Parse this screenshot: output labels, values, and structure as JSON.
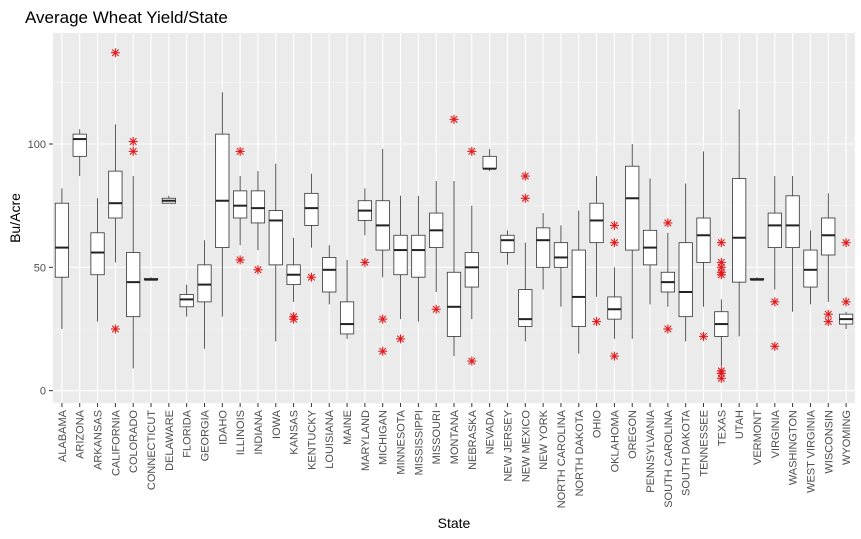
{
  "chart_data": {
    "type": "boxplot",
    "title": "Average Wheat Yield/State",
    "xlabel": "State",
    "ylabel": "Bu/Acre",
    "ylim": [
      -5,
      145
    ],
    "yticks": [
      0,
      50,
      100
    ],
    "grid": true,
    "panel_color": "#ebebeb",
    "outlier_color": "#e31a1c",
    "box_fill": "#ffffff",
    "box_stroke": "#333333",
    "categories": [
      "ALABAMA",
      "ARIZONA",
      "ARKANSAS",
      "CALIFORNIA",
      "COLORADO",
      "CONNECTICUT",
      "DELAWARE",
      "FLORIDA",
      "GEORGIA",
      "IDAHO",
      "ILLINOIS",
      "INDIANA",
      "IOWA",
      "KANSAS",
      "KENTUCKY",
      "LOUISIANA",
      "MAINE",
      "MARYLAND",
      "MICHIGAN",
      "MINNESOTA",
      "MISSISSIPPI",
      "MISSOURI",
      "MONTANA",
      "NEBRASKA",
      "NEVADA",
      "NEW JERSEY",
      "NEW MEXICO",
      "NEW YORK",
      "NORTH CAROLINA",
      "NORTH DAKOTA",
      "OHIO",
      "OKLAHOMA",
      "OREGON",
      "PENNSYLVANIA",
      "SOUTH CAROLINA",
      "SOUTH DAKOTA",
      "TENNESSEE",
      "TEXAS",
      "UTAH",
      "VERMONT",
      "VIRGINIA",
      "WASHINGTON",
      "WEST VIRGINIA",
      "WISCONSIN",
      "WYOMING"
    ],
    "boxes": [
      {
        "min": 25,
        "q1": 46,
        "median": 58,
        "q3": 76,
        "max": 82,
        "outliers": []
      },
      {
        "min": 87,
        "q1": 95,
        "median": 102,
        "q3": 104,
        "max": 106,
        "outliers": []
      },
      {
        "min": 28,
        "q1": 47,
        "median": 56,
        "q3": 64,
        "max": 78,
        "outliers": []
      },
      {
        "min": 52,
        "q1": 70,
        "median": 76,
        "q3": 89,
        "max": 108,
        "outliers": [
          137,
          25
        ]
      },
      {
        "min": 9,
        "q1": 30,
        "median": 44,
        "q3": 56,
        "max": 87,
        "outliers": [
          101,
          97
        ]
      },
      {
        "min": 45,
        "q1": 45,
        "median": 45,
        "q3": 45.5,
        "max": 46,
        "outliers": []
      },
      {
        "min": 76,
        "q1": 76,
        "median": 77,
        "q3": 78,
        "max": 79,
        "outliers": []
      },
      {
        "min": 30,
        "q1": 34,
        "median": 37,
        "q3": 39,
        "max": 43,
        "outliers": []
      },
      {
        "min": 17,
        "q1": 36,
        "median": 43,
        "q3": 51,
        "max": 61,
        "outliers": []
      },
      {
        "min": 30,
        "q1": 58,
        "median": 77,
        "q3": 104,
        "max": 121,
        "outliers": []
      },
      {
        "min": 59,
        "q1": 70,
        "median": 75,
        "q3": 81,
        "max": 87,
        "outliers": [
          97,
          53
        ]
      },
      {
        "min": 57,
        "q1": 68,
        "median": 74,
        "q3": 81,
        "max": 89,
        "outliers": [
          49
        ]
      },
      {
        "min": 20,
        "q1": 51,
        "median": 69,
        "q3": 73,
        "max": 92,
        "outliers": []
      },
      {
        "min": 36,
        "q1": 43,
        "median": 47,
        "q3": 51,
        "max": 62,
        "outliers": [
          30,
          29
        ]
      },
      {
        "min": 58,
        "q1": 67,
        "median": 74,
        "q3": 80,
        "max": 88,
        "outliers": [
          46
        ]
      },
      {
        "min": 35,
        "q1": 40,
        "median": 49,
        "q3": 54,
        "max": 59,
        "outliers": []
      },
      {
        "min": 21,
        "q1": 23,
        "median": 27,
        "q3": 36,
        "max": 53,
        "outliers": []
      },
      {
        "min": 63,
        "q1": 69,
        "median": 73,
        "q3": 77,
        "max": 82,
        "outliers": [
          52
        ]
      },
      {
        "min": 46,
        "q1": 57,
        "median": 67,
        "q3": 77,
        "max": 98,
        "outliers": [
          29,
          16
        ]
      },
      {
        "min": 29,
        "q1": 47,
        "median": 57,
        "q3": 63,
        "max": 79,
        "outliers": [
          21
        ]
      },
      {
        "min": 28,
        "q1": 46,
        "median": 57,
        "q3": 63,
        "max": 79,
        "outliers": []
      },
      {
        "min": 40,
        "q1": 58,
        "median": 65,
        "q3": 72,
        "max": 85,
        "outliers": [
          33
        ]
      },
      {
        "min": 14,
        "q1": 22,
        "median": 34,
        "q3": 48,
        "max": 85,
        "outliers": [
          110
        ]
      },
      {
        "min": 29,
        "q1": 42,
        "median": 50,
        "q3": 56,
        "max": 75,
        "outliers": [
          97,
          12
        ]
      },
      {
        "min": 89,
        "q1": 90,
        "median": 90,
        "q3": 95,
        "max": 98,
        "outliers": []
      },
      {
        "min": 51,
        "q1": 56,
        "median": 61,
        "q3": 63,
        "max": 65,
        "outliers": []
      },
      {
        "min": 20,
        "q1": 26,
        "median": 29,
        "q3": 41,
        "max": 60,
        "outliers": [
          87,
          78
        ]
      },
      {
        "min": 41,
        "q1": 50,
        "median": 61,
        "q3": 66,
        "max": 72,
        "outliers": []
      },
      {
        "min": 34,
        "q1": 50,
        "median": 54,
        "q3": 60,
        "max": 67,
        "outliers": []
      },
      {
        "min": 15,
        "q1": 26,
        "median": 38,
        "q3": 57,
        "max": 73,
        "outliers": []
      },
      {
        "min": 38,
        "q1": 60,
        "median": 69,
        "q3": 76,
        "max": 87,
        "outliers": [
          28
        ]
      },
      {
        "min": 21,
        "q1": 29,
        "median": 33,
        "q3": 38,
        "max": 50,
        "outliers": [
          67,
          60,
          14
        ]
      },
      {
        "min": 21,
        "q1": 57,
        "median": 78,
        "q3": 91,
        "max": 100,
        "outliers": []
      },
      {
        "min": 35,
        "q1": 51,
        "median": 58,
        "q3": 65,
        "max": 86,
        "outliers": []
      },
      {
        "min": 34,
        "q1": 40,
        "median": 44,
        "q3": 48,
        "max": 64,
        "outliers": [
          68,
          25
        ]
      },
      {
        "min": 20,
        "q1": 30,
        "median": 40,
        "q3": 60,
        "max": 84,
        "outliers": []
      },
      {
        "min": 34,
        "q1": 52,
        "median": 63,
        "q3": 70,
        "max": 97,
        "outliers": [
          22
        ]
      },
      {
        "min": 10,
        "q1": 22,
        "median": 27,
        "q3": 32,
        "max": 37,
        "outliers": [
          60,
          52,
          50,
          48,
          47,
          8,
          7,
          5
        ]
      },
      {
        "min": 22,
        "q1": 44,
        "median": 62,
        "q3": 86,
        "max": 114,
        "outliers": []
      },
      {
        "min": 45,
        "q1": 45,
        "median": 45,
        "q3": 45.5,
        "max": 46,
        "outliers": []
      },
      {
        "min": 41,
        "q1": 58,
        "median": 67,
        "q3": 72,
        "max": 87,
        "outliers": [
          36,
          18
        ]
      },
      {
        "min": 32,
        "q1": 58,
        "median": 67,
        "q3": 79,
        "max": 87,
        "outliers": []
      },
      {
        "min": 35,
        "q1": 42,
        "median": 49,
        "q3": 57,
        "max": 65,
        "outliers": []
      },
      {
        "min": 36,
        "q1": 55,
        "median": 63,
        "q3": 70,
        "max": 80,
        "outliers": [
          31,
          28
        ]
      },
      {
        "min": 25,
        "q1": 27,
        "median": 29,
        "q3": 31,
        "max": 32,
        "outliers": [
          60,
          36
        ]
      }
    ]
  }
}
